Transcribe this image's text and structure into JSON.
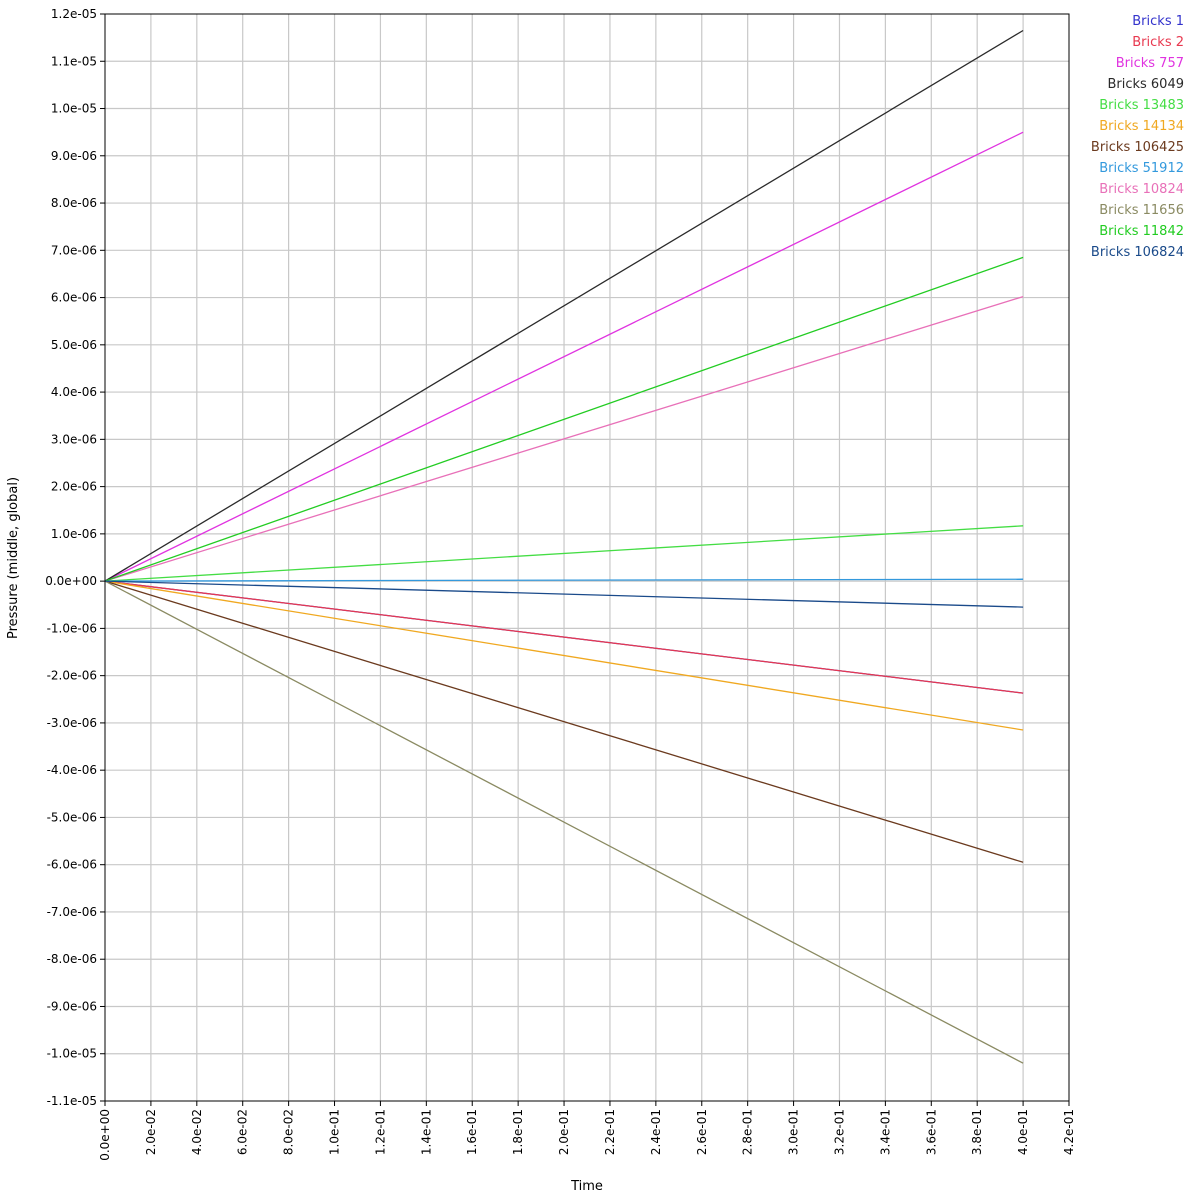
{
  "chart_data": {
    "type": "line",
    "title": "",
    "xlabel": "Time",
    "ylabel": "Pressure (middle, global)",
    "xlim": [
      0,
      0.42
    ],
    "ylim": [
      -1.1e-05,
      1.2e-05
    ],
    "grid": true,
    "legend_position": "top-right",
    "x_ticks": [
      "0.0e+00",
      "2.0e-02",
      "4.0e-02",
      "6.0e-02",
      "8.0e-02",
      "1.0e-01",
      "1.2e-01",
      "1.4e-01",
      "1.6e-01",
      "1.8e-01",
      "2.0e-01",
      "2.2e-01",
      "2.4e-01",
      "2.6e-01",
      "2.8e-01",
      "3.0e-01",
      "3.2e-01",
      "3.4e-01",
      "3.6e-01",
      "3.8e-01",
      "4.0e-01",
      "4.2e-01"
    ],
    "y_ticks": [
      "1.2e-05",
      "1.1e-05",
      "1.0e-05",
      "9.0e-06",
      "8.0e-06",
      "7.0e-06",
      "6.0e-06",
      "5.0e-06",
      "4.0e-06",
      "3.0e-06",
      "2.0e-06",
      "1.0e-06",
      "0.0e+00",
      "-1.0e-06",
      "-2.0e-06",
      "-3.0e-06",
      "-4.0e-06",
      "-5.0e-06",
      "-6.0e-06",
      "-7.0e-06",
      "-8.0e-06",
      "-9.0e-06",
      "-1.0e-05",
      "-1.1e-05"
    ],
    "series": [
      {
        "name": "Bricks 1",
        "color": "#3333cc",
        "x": [
          0,
          0.4
        ],
        "y": [
          0,
          -2.37e-06
        ]
      },
      {
        "name": "Bricks 2",
        "color": "#e8384f",
        "x": [
          0,
          0.4
        ],
        "y": [
          0,
          -2.37e-06
        ]
      },
      {
        "name": "Bricks 757",
        "color": "#e033e0",
        "x": [
          0,
          0.4
        ],
        "y": [
          0,
          9.5e-06
        ]
      },
      {
        "name": "Bricks 6049",
        "color": "#2a2a2a",
        "x": [
          0,
          0.4
        ],
        "y": [
          0,
          1.165e-05
        ]
      },
      {
        "name": "Bricks 13483",
        "color": "#44dd44",
        "x": [
          0,
          0.4
        ],
        "y": [
          0,
          1.17e-06
        ]
      },
      {
        "name": "Bricks 14134",
        "color": "#f0a820",
        "x": [
          0,
          0.4
        ],
        "y": [
          0,
          -3.15e-06
        ]
      },
      {
        "name": "Bricks 106425",
        "color": "#6b3a1e",
        "x": [
          0,
          0.4
        ],
        "y": [
          0,
          -5.95e-06
        ]
      },
      {
        "name": "Bricks 51912",
        "color": "#3399dd",
        "x": [
          0,
          0.4
        ],
        "y": [
          0,
          4e-08
        ]
      },
      {
        "name": "Bricks 10824",
        "color": "#e870b8",
        "x": [
          0,
          0.4
        ],
        "y": [
          0,
          6.02e-06
        ]
      },
      {
        "name": "Bricks 11656",
        "color": "#8a8a62",
        "x": [
          0,
          0.4
        ],
        "y": [
          0,
          -1.02e-05
        ]
      },
      {
        "name": "Bricks 11842",
        "color": "#22cc22",
        "x": [
          0,
          0.4
        ],
        "y": [
          0,
          6.85e-06
        ]
      },
      {
        "name": "Bricks 106824",
        "color": "#1a4a8a",
        "x": [
          0,
          0.4
        ],
        "y": [
          0,
          -5.5e-07
        ]
      }
    ]
  }
}
